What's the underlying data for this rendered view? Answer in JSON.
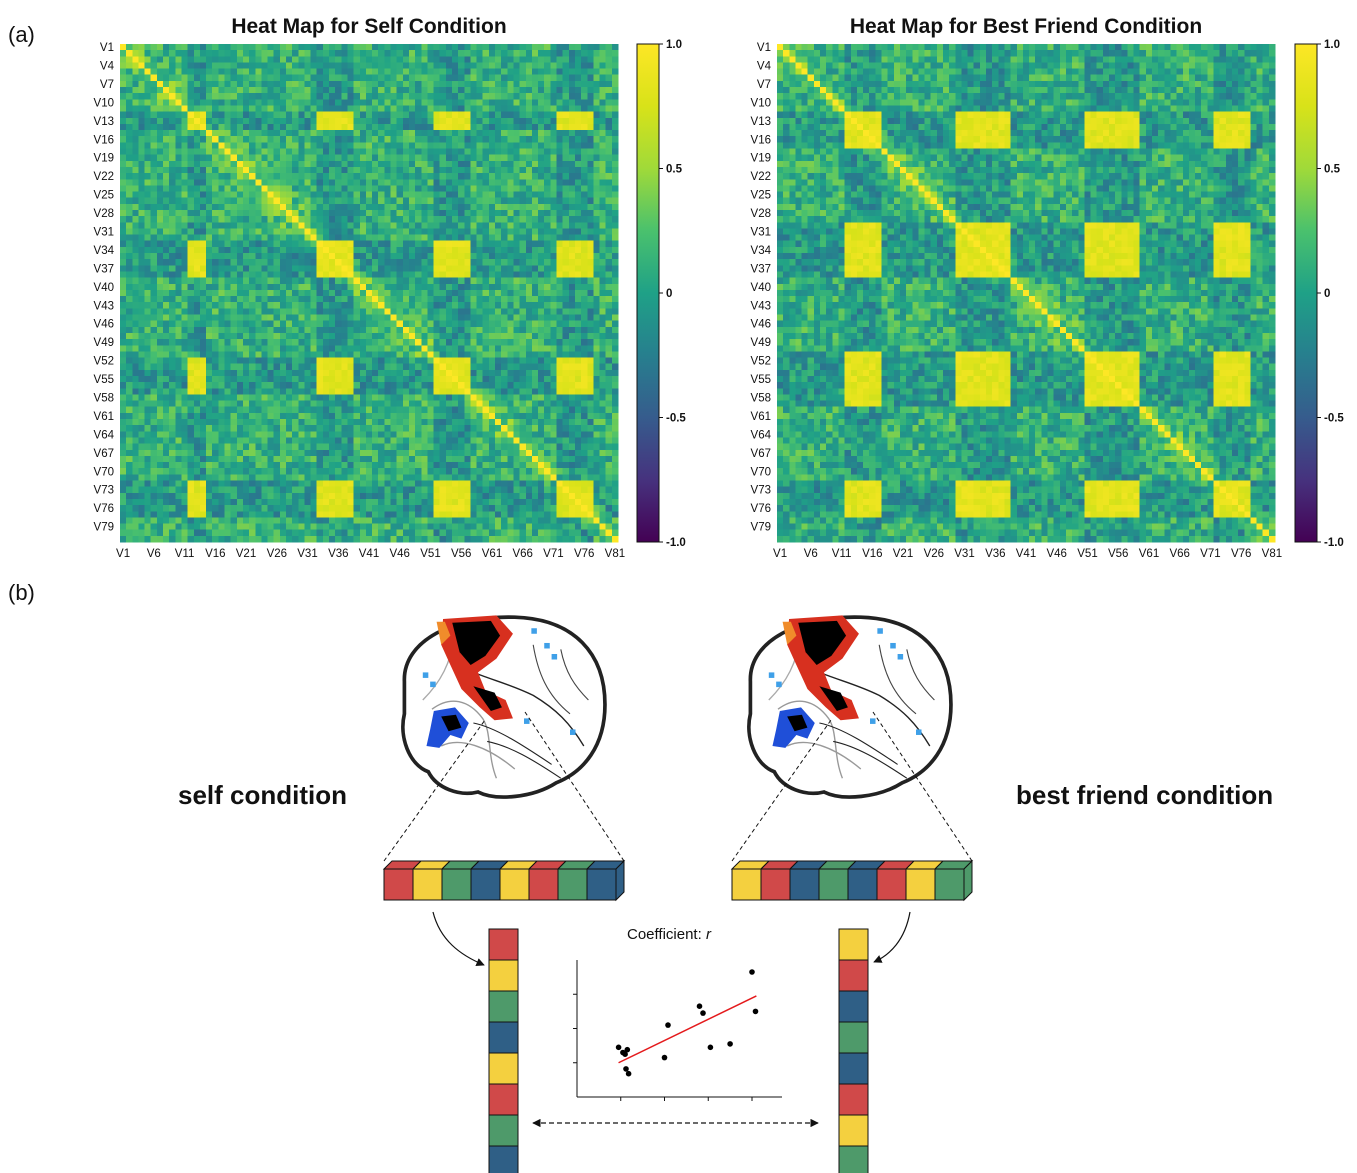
{
  "labels": {
    "panel_a": "(a)",
    "panel_b": "(b)",
    "self_condition": "self condition",
    "best_friend_condition": "best friend condition",
    "coefficient_prefix": "Coefficient: ",
    "coefficient_symbol": "r"
  },
  "colors": {
    "block_red": "#d04949",
    "block_yellow": "#f4d03f",
    "block_green": "#4e9a6a",
    "block_blue": "#2f5f86",
    "regression_line": "#e41a1c",
    "activation_warm": "#d7301f",
    "activation_cool": "#1f4fd8"
  },
  "blocks": {
    "self_horizontal": [
      "red",
      "yellow",
      "green",
      "blue",
      "yellow",
      "red",
      "green",
      "blue"
    ],
    "friend_horizontal": [
      "yellow",
      "red",
      "blue",
      "green",
      "blue",
      "red",
      "yellow",
      "green"
    ],
    "self_vertical": [
      "red",
      "yellow",
      "green",
      "blue",
      "yellow",
      "red",
      "green",
      "blue"
    ],
    "friend_vertical": [
      "yellow",
      "red",
      "blue",
      "green",
      "blue",
      "red",
      "yellow",
      "green"
    ]
  },
  "chart_data": [
    {
      "type": "heatmap",
      "title": "Heat Map for Self Condition",
      "n_variables": 81,
      "row_labels": [
        "V1",
        "V4",
        "V7",
        "V10",
        "V13",
        "V16",
        "V19",
        "V22",
        "V25",
        "V28",
        "V31",
        "V34",
        "V37",
        "V40",
        "V43",
        "V46",
        "V49",
        "V52",
        "V55",
        "V58",
        "V61",
        "V64",
        "V67",
        "V70",
        "V73",
        "V76",
        "V79"
      ],
      "col_labels": [
        "V1",
        "V6",
        "V11",
        "V16",
        "V21",
        "V26",
        "V31",
        "V36",
        "V41",
        "V46",
        "V51",
        "V56",
        "V61",
        "V66",
        "V71",
        "V76",
        "V81"
      ],
      "colormap": "viridis",
      "value_range": [
        -1.0,
        1.0
      ],
      "colorbar_ticks": [
        "1.0",
        "0.5",
        "0",
        "-0.5",
        "-1.0"
      ],
      "diagonal": 1.0,
      "high_correlation_groups": [
        [
          12,
          13,
          14
        ],
        [
          33,
          34,
          35
        ],
        [
          36,
          37,
          38
        ],
        [
          52,
          53,
          54
        ],
        [
          55,
          56,
          57
        ],
        [
          72,
          73,
          74
        ],
        [
          75,
          76,
          77
        ]
      ]
    },
    {
      "type": "heatmap",
      "title": "Heat Map for Best Friend Condition",
      "n_variables": 81,
      "row_labels": [
        "V1",
        "V4",
        "V7",
        "V10",
        "V13",
        "V16",
        "V19",
        "V22",
        "V25",
        "V28",
        "V31",
        "V34",
        "V37",
        "V40",
        "V43",
        "V46",
        "V49",
        "V52",
        "V55",
        "V58",
        "V61",
        "V64",
        "V67",
        "V70",
        "V73",
        "V76",
        "V79"
      ],
      "col_labels": [
        "V1",
        "V6",
        "V11",
        "V16",
        "V21",
        "V26",
        "V31",
        "V36",
        "V41",
        "V46",
        "V51",
        "V56",
        "V61",
        "V66",
        "V71",
        "V76",
        "V81"
      ],
      "colormap": "viridis",
      "value_range": [
        -1.0,
        1.0
      ],
      "colorbar_ticks": [
        "1.0",
        "0.5",
        "0",
        "-0.5",
        "-1.0"
      ],
      "diagonal": 1.0,
      "high_correlation_groups": [
        [
          12,
          13,
          14
        ],
        [
          15,
          16,
          17
        ],
        [
          30,
          31,
          32
        ],
        [
          33,
          34,
          35
        ],
        [
          36,
          37,
          38
        ],
        [
          51,
          52,
          53
        ],
        [
          54,
          55,
          56
        ],
        [
          57,
          58,
          59
        ],
        [
          72,
          73,
          74
        ],
        [
          75,
          76,
          77
        ]
      ]
    },
    {
      "type": "scatter",
      "title": "Coefficient: r",
      "xlabel": "",
      "ylabel": "",
      "xlim": [
        0,
        4
      ],
      "ylim": [
        0,
        4
      ],
      "points": [
        [
          0.95,
          1.45
        ],
        [
          1.05,
          1.3
        ],
        [
          1.1,
          1.25
        ],
        [
          1.15,
          1.38
        ],
        [
          1.12,
          0.82
        ],
        [
          1.18,
          0.68
        ],
        [
          2.0,
          1.15
        ],
        [
          2.08,
          2.1
        ],
        [
          2.8,
          2.65
        ],
        [
          2.88,
          2.45
        ],
        [
          3.05,
          1.45
        ],
        [
          3.5,
          1.55
        ],
        [
          4.0,
          3.65
        ],
        [
          4.08,
          2.5
        ]
      ],
      "fit_line": {
        "x": [
          0.95,
          4.1
        ],
        "y": [
          1.0,
          2.95
        ]
      },
      "x_ticks": [
        1,
        2,
        3,
        4
      ],
      "y_ticks": [
        1,
        2,
        3
      ]
    }
  ]
}
